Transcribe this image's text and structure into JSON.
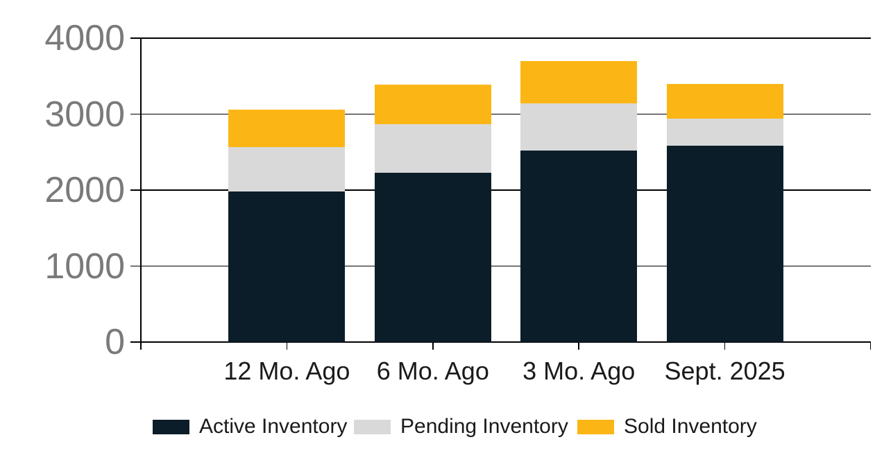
{
  "chart_data": {
    "type": "bar",
    "stacked": true,
    "title": "",
    "xlabel": "",
    "ylabel": "",
    "categories": [
      "12 Mo. Ago",
      "6 Mo. Ago",
      "3 Mo. Ago",
      "Sept. 2025"
    ],
    "series": [
      {
        "name": "Active Inventory",
        "color": "#0b1d29",
        "values": [
          1980,
          2230,
          2520,
          2580
        ]
      },
      {
        "name": "Pending Inventory",
        "color": "#d9d9d9",
        "values": [
          590,
          640,
          620,
          360
        ]
      },
      {
        "name": "Sold Inventory",
        "color": "#fbb616",
        "values": [
          490,
          520,
          560,
          460
        ]
      }
    ],
    "totals": [
      3060,
      3390,
      3700,
      3400
    ],
    "ylim": [
      0,
      4000
    ],
    "yticks": [
      0,
      1000,
      2000,
      3000,
      4000
    ],
    "grid": "horizontal",
    "legend_position": "bottom",
    "axis_color": "#000000",
    "ytick_label_color": "#7a7a7a",
    "xtick_label_color": "#1a1a1a",
    "legend_text_color": "#1a1a1a",
    "background_color": "#ffffff"
  }
}
